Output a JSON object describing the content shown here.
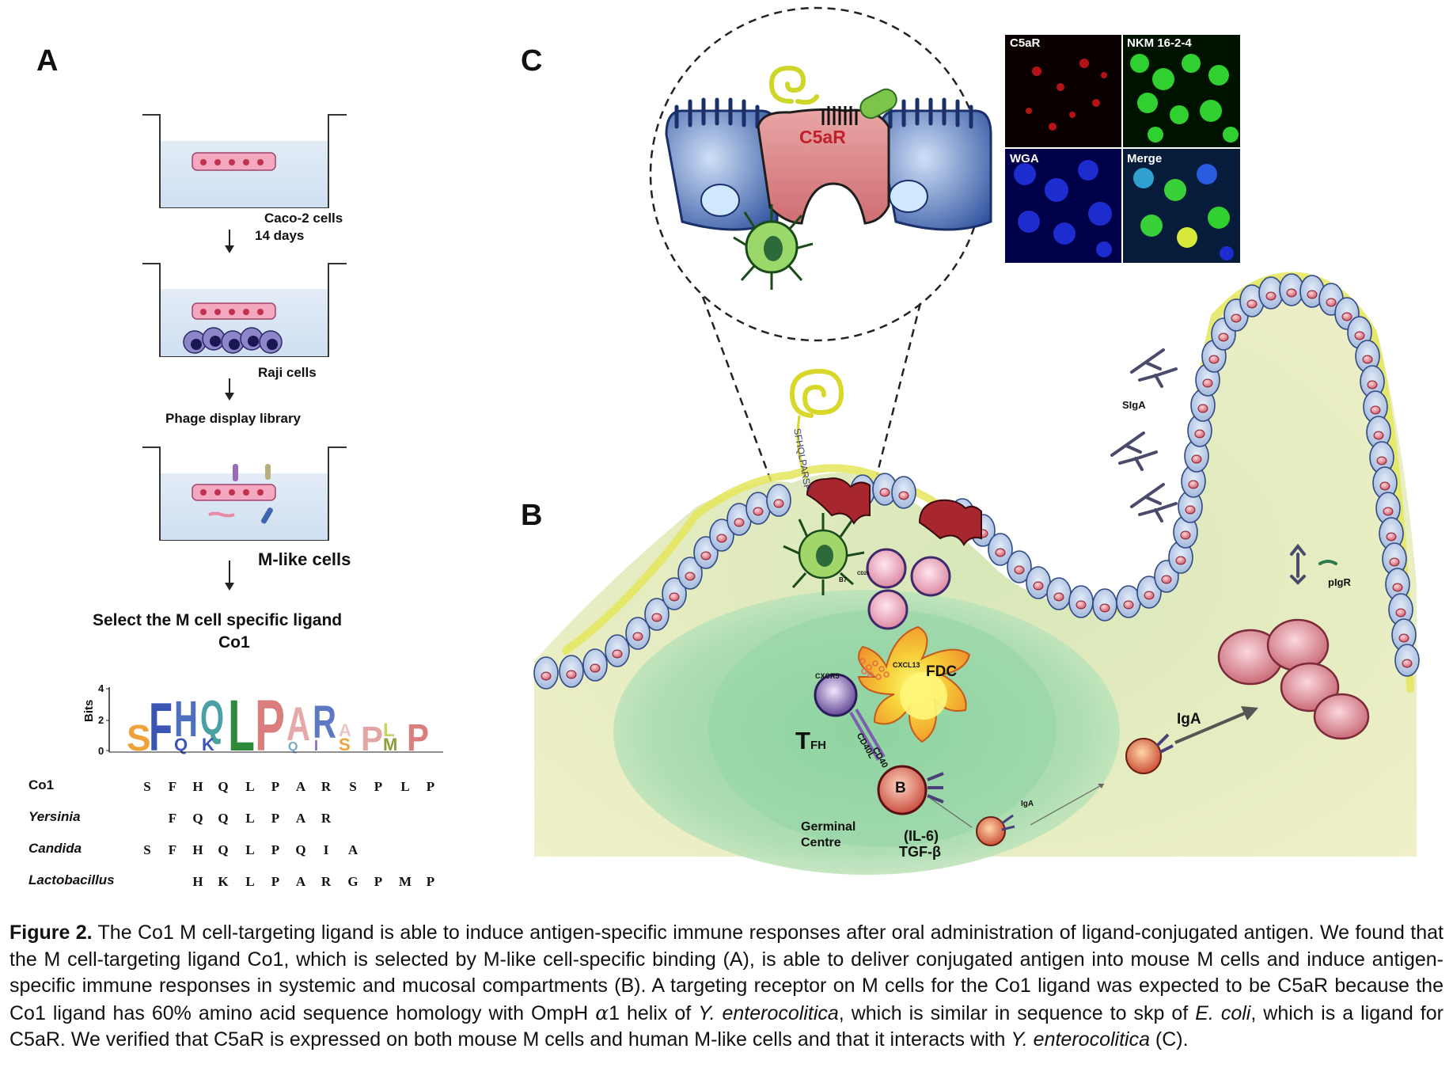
{
  "figure": {
    "panels": {
      "a": "A",
      "b": "B",
      "c": "C"
    },
    "panel_a": {
      "step1_label_line1": "Caco-2 cells",
      "step1_label_line2": "14 days",
      "step2_label": "Raji cells",
      "step3_label": "Phage display library",
      "step4_label": "M-like cells",
      "select_line1": "Select the M cell specific ligand",
      "select_line2": "Co1",
      "logo_axis_label": "Bits",
      "logo_ticks": [
        "4",
        "2",
        "0"
      ],
      "logo_letters": [
        "S",
        "F",
        "H",
        "Q",
        "L",
        "P",
        "A",
        "R",
        "S",
        "P",
        "L",
        "P"
      ],
      "logo_lower_letters": [
        "Q",
        "K",
        "Q",
        "I",
        "S",
        "M"
      ]
    },
    "sequences": [
      {
        "name": "Co1",
        "italic": false,
        "cols": [
          "S",
          "F",
          "H",
          "Q",
          "L",
          "P",
          "A",
          "R",
          "S",
          "P",
          "L",
          "P"
        ]
      },
      {
        "name": "Yersinia",
        "italic": true,
        "cols": [
          "",
          "F",
          "Q",
          "Q",
          "L",
          "P",
          "A",
          "R",
          "",
          "",
          "",
          ""
        ]
      },
      {
        "name": "Candida",
        "italic": true,
        "cols": [
          "S",
          "F",
          "H",
          "Q",
          "L",
          "P",
          "Q",
          "I",
          "A",
          "",
          "",
          ""
        ]
      },
      {
        "name": "Lactobacillus",
        "italic": true,
        "cols": [
          "",
          "",
          "H",
          "K",
          "L",
          "P",
          "A",
          "R",
          "G",
          "P",
          "M",
          "P"
        ]
      }
    ],
    "panel_c": {
      "receptor_label": "C5aR",
      "micro_labels": [
        "C5aR",
        "NKM 16-2-4",
        "WGA",
        "Merge"
      ]
    },
    "panel_b": {
      "ligand_seq": "SFHQLPARSP",
      "sigA": "SIgA",
      "pigr": "pIgR",
      "iga_small": "IgA",
      "iga_big": "IgA",
      "fdc": "FDC",
      "cxcr5": "CXCR5",
      "cxcl13": "CXCL13",
      "tfh_main": "T",
      "tfh_sub": "FH",
      "cd40l": "CD40L",
      "cd40": "CD40",
      "b_cell": "B",
      "b7": "B7",
      "cd28": "CD28",
      "germinal_line1": "Germinal",
      "germinal_line2": "Centre",
      "il6": "(IL-6)",
      "tgfb": "TGF-β"
    },
    "caption": {
      "figure_label": "Figure 2.",
      "p1": " The Co1 M cell-targeting ligand is able to induce antigen-specific immune responses after oral administration of ligand-conjugated antigen. We found that the M cell-targeting ligand Co1, which is selected by M-like cell-specific binding (A), is able to deliver conjugated antigen into mouse M cells and induce antigen-specific immune responses in systemic and mucosal compartments (B). A targeting receptor on M cells for the Co1 ligand was expected to be C5aR because the Co1 ligand has 60% amino acid sequence homology with OmpH ",
      "alpha": "α",
      "p2": "1 helix of ",
      "y1": "Y. enterocolitica",
      "p3": ", which is similar in sequence to skp of ",
      "ecoli": "E. coli",
      "p4": ", which is a ligand for C5aR. We verified that C5aR is expressed on both mouse M cells and human M-like cells and that it interacts with ",
      "y2": "Y. enterocolitica",
      "p5": " (C)."
    },
    "colors": {
      "epithelium": "#b8cbe8",
      "m_cell": "#b0303a",
      "mucus": "#e6e65a",
      "lamina": "#e9ecbe",
      "germinal": "#8fd1a3"
    }
  }
}
